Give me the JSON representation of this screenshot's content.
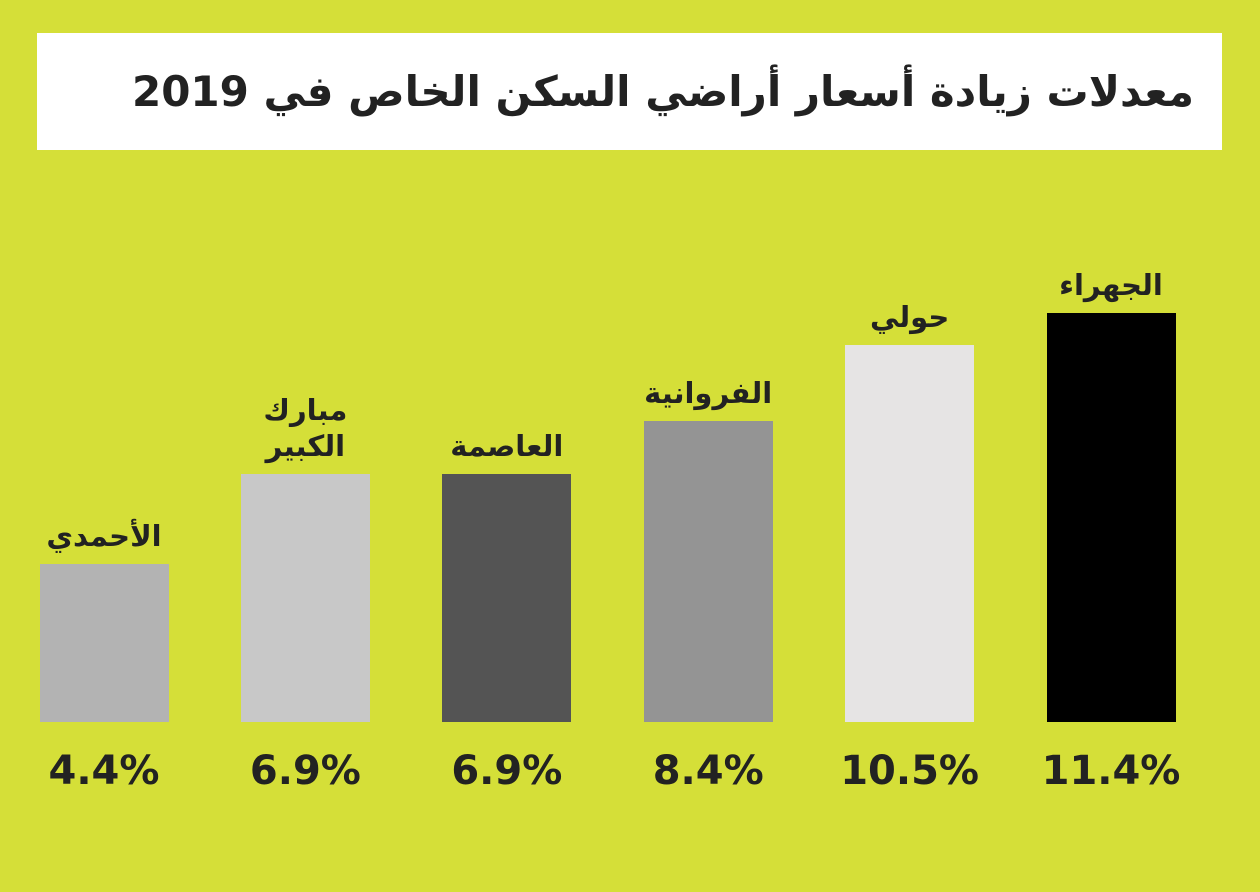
{
  "chart_data": {
    "type": "bar",
    "title": "معدلات زيادة أسعار أراضي السكن الخاص في 2019",
    "categories": [
      "الأحمدي",
      "مبارك الكبير",
      "العاصمة",
      "الفروانية",
      "حولي",
      "الجهراء"
    ],
    "values": [
      4.4,
      6.9,
      6.9,
      8.4,
      10.5,
      11.4
    ],
    "value_labels": [
      "4.4%",
      "6.9%",
      "6.9%",
      "8.4%",
      "10.5%",
      "11.4%"
    ],
    "colors": [
      "#b3b3b3",
      "#c8c8c8",
      "#545454",
      "#949494",
      "#e6e4e4",
      "#000000"
    ]
  }
}
